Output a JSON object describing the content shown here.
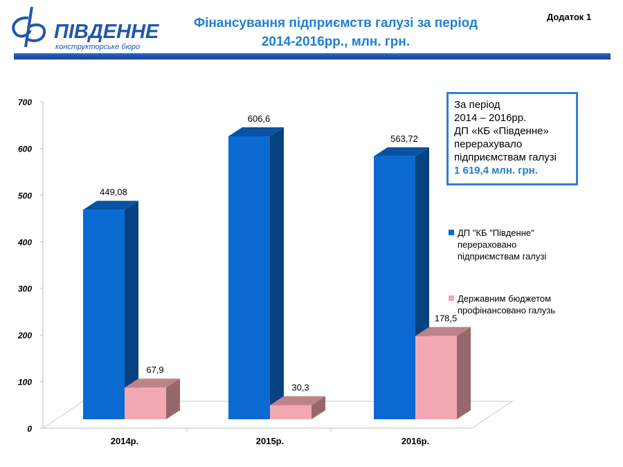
{
  "header": {
    "logo_name": "ПІВДЕННЕ",
    "logo_subtitle": "конструкторське бюро",
    "title_line1": "Фінансування підприємств галузі за період",
    "title_line2": "2014-2016рр., млн. грн.",
    "appendix": "Додаток 1"
  },
  "colors": {
    "accent": "#1f7fd1",
    "series_blue": "#0a6ad2",
    "series_pink": "#f2a8b2",
    "header_rule": "#1f4fae"
  },
  "info_box": {
    "lines": [
      "За період",
      "2014 – 2016рр.",
      "ДП «КБ «Південне»",
      "перерахувало",
      "підприємствам галузі"
    ],
    "highlight": "1 619,4 млн. грн."
  },
  "chart_data": {
    "type": "bar",
    "categories": [
      "2014р.",
      "2015р.",
      "2016р."
    ],
    "series": [
      {
        "name": "ДП \"КБ \"Південне\" перераховано підприємствам галузі",
        "values": [
          449.08,
          606.6,
          563.72
        ],
        "labels": [
          "449,08",
          "606,6",
          "563,72"
        ],
        "color": "#0a6ad2"
      },
      {
        "name": "Державним бюджетом профінансовано галузь",
        "values": [
          67.9,
          30.3,
          178.5
        ],
        "labels": [
          "67,9",
          "30,3",
          "178,5"
        ],
        "color": "#f2a8b2"
      }
    ],
    "ylim": [
      0,
      700
    ],
    "yticks": [
      0,
      100,
      200,
      300,
      400,
      500,
      600,
      700
    ],
    "ytick_labels": [
      "0",
      "100",
      "200",
      "300",
      "400",
      "500",
      "600",
      "700"
    ],
    "grid": false,
    "legend_position": "right",
    "three_d": true
  }
}
